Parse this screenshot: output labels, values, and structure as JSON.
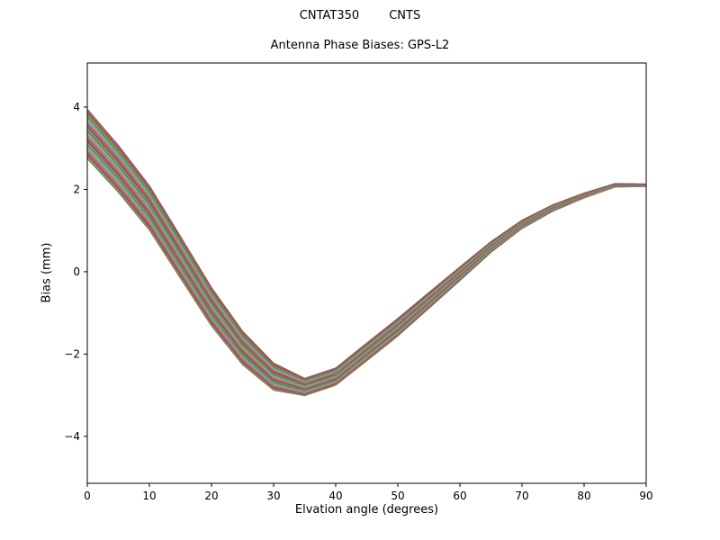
{
  "titles": {
    "suptitle": "CNTAT350        CNTS",
    "axes_title": "Antenna Phase Biases: GPS-L2"
  },
  "chart_data": {
    "type": "line",
    "suptitle": "CNTAT350        CNTS",
    "title": "Antenna Phase Biases: GPS-L2",
    "xlabel": "Elvation angle (degrees)",
    "ylabel": "Bias (mm)",
    "xlim": [
      0,
      90
    ],
    "ylim": [
      -5.14,
      5.07
    ],
    "xticks": [
      0,
      10,
      20,
      30,
      40,
      50,
      60,
      70,
      80,
      90
    ],
    "xtick_labels": [
      "0",
      "10",
      "20",
      "30",
      "40",
      "50",
      "60",
      "70",
      "80",
      "90"
    ],
    "yticks": [
      -4,
      -2,
      0,
      2,
      4
    ],
    "ytick_labels": [
      "−4",
      "−2",
      "0",
      "2",
      "4"
    ],
    "grid": false,
    "legend": null,
    "x": [
      0,
      5,
      10,
      15,
      20,
      25,
      30,
      35,
      40,
      45,
      50,
      55,
      60,
      65,
      70,
      75,
      80,
      85,
      90
    ],
    "ensemble": {
      "description": "Bundle of overlapping antenna phase bias curves (one per satellite/solution), starting near 3-4 mm at 0 deg, dipping to about -2.6 to -3.0 mm near 35 deg, rising back to about 2.1 mm at 90 deg where all curves converge",
      "n_lines": 36,
      "base_values": [
        3.35,
        2.5,
        1.55,
        0.35,
        -0.85,
        -1.85,
        -2.55,
        -2.8,
        -2.55,
        -1.95,
        -1.35,
        -0.7,
        -0.05,
        0.6,
        1.15,
        1.55,
        1.85,
        2.1,
        2.1
      ],
      "offset_weights": [
        1.0,
        0.95,
        0.9,
        0.85,
        0.78,
        0.68,
        0.55,
        0.35,
        0.35,
        0.36,
        0.36,
        0.32,
        0.28,
        0.22,
        0.17,
        0.13,
        0.1,
        0.07,
        0.05
      ],
      "offset_range": [
        -0.6,
        0.6
      ],
      "envelope_low": [
        2.75,
        1.93,
        1.01,
        -0.16,
        -1.32,
        -2.26,
        -2.88,
        -3.01,
        -2.76,
        -2.17,
        -1.57,
        -0.89,
        -0.22,
        0.47,
        1.05,
        1.47,
        1.79,
        2.06,
        2.07
      ],
      "envelope_high": [
        3.95,
        3.07,
        2.09,
        0.86,
        -0.38,
        -1.44,
        -2.22,
        -2.59,
        -2.34,
        -1.73,
        -1.13,
        -0.51,
        0.12,
        0.73,
        1.25,
        1.63,
        1.91,
        2.14,
        2.13
      ]
    },
    "colors": [
      "#1f77b4",
      "#ff7f0e",
      "#2ca02c",
      "#d62728",
      "#9467bd",
      "#8c564b",
      "#e377c2",
      "#7f7f7f",
      "#bcbd22",
      "#17becf"
    ]
  }
}
